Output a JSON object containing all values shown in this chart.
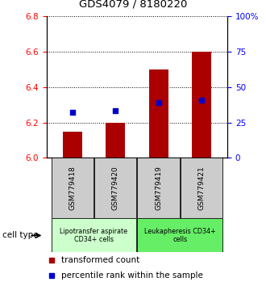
{
  "title": "GDS4079 / 8180220",
  "samples": [
    "GSM779418",
    "GSM779420",
    "GSM779419",
    "GSM779421"
  ],
  "bar_values": [
    6.15,
    6.2,
    6.5,
    6.6
  ],
  "bar_bottom": 6.0,
  "percentile_values": [
    6.26,
    6.265,
    6.315,
    6.325
  ],
  "bar_color": "#AA0000",
  "dot_color": "#0000CC",
  "ylim_left": [
    6.0,
    6.8
  ],
  "ylim_right": [
    0,
    100
  ],
  "yticks_left": [
    6.0,
    6.2,
    6.4,
    6.6,
    6.8
  ],
  "yticks_right": [
    0,
    25,
    50,
    75,
    100
  ],
  "ytick_labels_right": [
    "0",
    "25",
    "50",
    "75",
    "100%"
  ],
  "groups": [
    {
      "label": "Lipotransfer aspirate\nCD34+ cells",
      "color": "#CCFFCC",
      "span": [
        0,
        2
      ]
    },
    {
      "label": "Leukapheresis CD34+\ncells",
      "color": "#66EE66",
      "span": [
        2,
        4
      ]
    }
  ],
  "group_label": "cell type",
  "legend_bar_label": "transformed count",
  "legend_dot_label": "percentile rank within the sample",
  "bar_width": 0.45,
  "sample_box_color": "#CCCCCC"
}
